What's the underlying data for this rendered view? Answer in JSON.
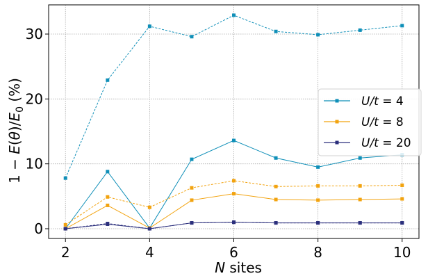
{
  "chart_data": {
    "type": "line",
    "xlabel": "N sites",
    "ylabel": "1 − E(θ)/E₀ (%)",
    "xlim": [
      1.6,
      10.4
    ],
    "ylim": [
      -1.5,
      34.5
    ],
    "xticks": [
      2,
      4,
      6,
      8,
      10
    ],
    "yticks": [
      0,
      10,
      20,
      30
    ],
    "xtick_labels": [
      "2",
      "4",
      "6",
      "8",
      "10"
    ],
    "ytick_labels": [
      "0",
      "10",
      "20",
      "30"
    ],
    "grid": true,
    "grid_style": "dotted",
    "legend_position": "center-right",
    "legend": [
      {
        "label_var": "U/t",
        "label_eq": " = 4",
        "color": "#0f8fb8"
      },
      {
        "label_var": "U/t",
        "label_eq": " = 8",
        "color": "#f2a30f"
      },
      {
        "label_var": "U/t",
        "label_eq": " = 20",
        "color": "#2b2f7c"
      }
    ],
    "x": [
      2,
      3,
      4,
      5,
      6,
      7,
      8,
      9,
      10
    ],
    "series": [
      {
        "legend_index": 0,
        "style": "dashed",
        "color": "#0f8fb8",
        "values": [
          7.8,
          22.9,
          31.2,
          29.6,
          32.9,
          30.4,
          29.9,
          30.6,
          31.3
        ]
      },
      {
        "legend_index": 0,
        "style": "solid",
        "color": "#0f8fb8",
        "values": [
          0.0,
          8.8,
          0.1,
          10.7,
          13.6,
          10.9,
          9.5,
          10.9,
          11.4
        ]
      },
      {
        "legend_index": 1,
        "style": "dashed",
        "color": "#f2a30f",
        "values": [
          0.6,
          4.9,
          3.3,
          6.3,
          7.4,
          6.5,
          6.6,
          6.6,
          6.7
        ]
      },
      {
        "legend_index": 1,
        "style": "solid",
        "color": "#f2a30f",
        "values": [
          0.0,
          3.6,
          0.1,
          4.4,
          5.4,
          4.5,
          4.4,
          4.5,
          4.6
        ]
      },
      {
        "legend_index": 2,
        "style": "dashed",
        "color": "#2b2f7c",
        "values": [
          0.0,
          0.8,
          0.0,
          0.9,
          1.0,
          0.9,
          0.9,
          0.9,
          0.9
        ]
      },
      {
        "legend_index": 2,
        "style": "solid",
        "color": "#2b2f7c",
        "values": [
          0.0,
          0.7,
          0.0,
          0.9,
          1.0,
          0.9,
          0.9,
          0.9,
          0.9
        ]
      }
    ]
  }
}
